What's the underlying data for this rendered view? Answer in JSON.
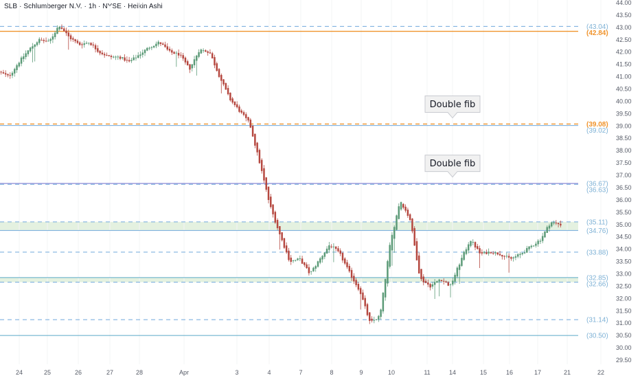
{
  "header": {
    "title": "SLB · Schlumberger N.V. · 1h · NYSE · Heikin Ashi"
  },
  "colors": {
    "up": "#5b9a77",
    "down": "#b5473f",
    "orange": "#f0932b",
    "blue_line": "#6fa8dc",
    "purple_line": "#9c9bdc",
    "teal_line": "#5aa9c7",
    "zone_fill": "#e4f1e0",
    "callout_bg": "#f1f1f1"
  },
  "chart_data": {
    "type": "candlestick",
    "style": "Heikin Ashi",
    "symbol": "SLB",
    "timeframe": "1h",
    "ylim": [
      29.5,
      44.0
    ],
    "y_ticks": [
      "44.00",
      "43.50",
      "43.00",
      "42.50",
      "42.00",
      "41.50",
      "41.00",
      "40.50",
      "40.00",
      "39.50",
      "39.00",
      "38.50",
      "38.00",
      "37.50",
      "37.00",
      "36.50",
      "36.00",
      "35.50",
      "35.00",
      "34.50",
      "34.00",
      "33.50",
      "33.00",
      "32.50",
      "32.00",
      "31.50",
      "31.00",
      "30.50",
      "30.00",
      "29.50"
    ],
    "x_ticks": [
      "24",
      "25",
      "26",
      "27",
      "28",
      "Apr",
      "3",
      "4",
      "7",
      "8",
      "9",
      "10",
      "11",
      "14",
      "15",
      "16",
      "17",
      "21",
      "22"
    ],
    "levels": [
      {
        "value": 43.04,
        "label": "(43.04)",
        "style": "dashed-blue"
      },
      {
        "value": 42.84,
        "label": "(42.84)",
        "style": "solid-orange"
      },
      {
        "value": 39.08,
        "label": "(39.08)",
        "style": "dashed-orange"
      },
      {
        "value": 39.02,
        "label": "(39.02)",
        "style": "solid-blue"
      },
      {
        "value": 36.67,
        "label": "(36.67)",
        "style": "solid-purple"
      },
      {
        "value": 36.63,
        "label": "(36.63)",
        "style": "dashed-blue"
      },
      {
        "value": 35.11,
        "label": "(35.11)",
        "style": "dashed-blue"
      },
      {
        "value": 34.76,
        "label": "(34.76)",
        "style": "solid-blue"
      },
      {
        "value": 33.88,
        "label": "(33.88)",
        "style": "dashed-blue"
      },
      {
        "value": 32.85,
        "label": "(32.85)",
        "style": "solid-teal"
      },
      {
        "value": 32.66,
        "label": "(32.66)",
        "style": "dashed-blue"
      },
      {
        "value": 31.14,
        "label": "(31.14)",
        "style": "dashed-blue"
      },
      {
        "value": 30.5,
        "label": "(30.50)",
        "style": "solid-teal"
      }
    ],
    "zones": [
      {
        "from": 34.76,
        "to": 35.11
      },
      {
        "from": 32.66,
        "to": 32.85
      }
    ],
    "annotations": [
      {
        "text": "Double fib",
        "points_to": 39.05
      },
      {
        "text": "Double fib",
        "points_to": 36.65
      }
    ],
    "path": [
      41.2,
      41.0,
      41.6,
      42.1,
      42.5,
      42.4,
      43.1,
      42.6,
      42.3,
      42.4,
      42.0,
      41.8,
      41.8,
      41.6,
      41.9,
      42.2,
      42.4,
      42.0,
      41.9,
      41.3,
      42.1,
      42.0,
      41.0,
      40.1,
      39.6,
      39.1,
      37.5,
      35.8,
      34.6,
      33.5,
      33.6,
      33.0,
      33.6,
      34.2,
      33.8,
      33.0,
      32.3,
      31.0,
      31.3,
      34.2,
      36.0,
      35.2,
      32.8,
      32.5,
      32.8,
      32.5,
      33.5,
      34.4,
      33.8,
      33.9,
      33.8,
      33.6,
      33.8,
      34.1,
      34.4,
      35.1,
      35.0
    ]
  }
}
